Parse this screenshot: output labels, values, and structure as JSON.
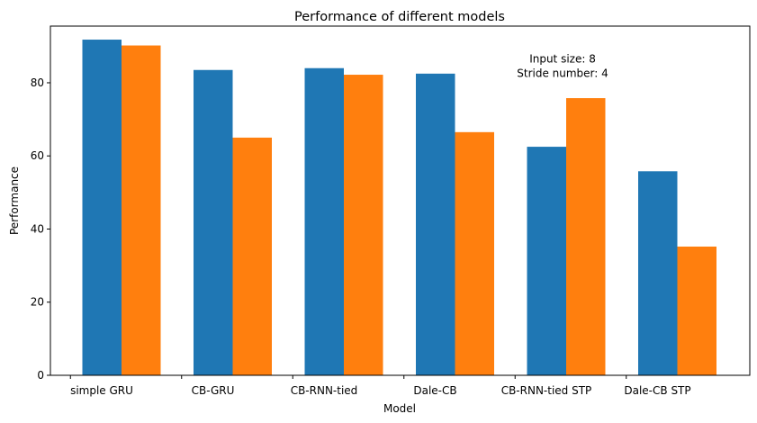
{
  "chart_data": {
    "type": "bar",
    "title": "Performance of different models",
    "xlabel": "Model",
    "ylabel": "Performance",
    "categories": [
      "simple GRU",
      "CB-GRU",
      "CB-RNN-tied",
      "Dale-CB",
      "CB-RNN-tied STP",
      "Dale-CB STP"
    ],
    "series": [
      {
        "values": [
          91.8,
          83.5,
          84.0,
          82.5,
          62.5,
          55.8
        ],
        "color": "#1f77b4"
      },
      {
        "values": [
          90.2,
          65.0,
          82.2,
          66.5,
          75.8,
          35.2
        ],
        "color": "#ff7f0e"
      }
    ],
    "ylim": [
      0,
      95.5
    ],
    "yticks": [
      0,
      20,
      40,
      60,
      80
    ],
    "grid": false,
    "annotation": {
      "lines": [
        "Input size: 8",
        "Stride number: 4"
      ],
      "x": 4.32,
      "y": 84.5
    }
  }
}
